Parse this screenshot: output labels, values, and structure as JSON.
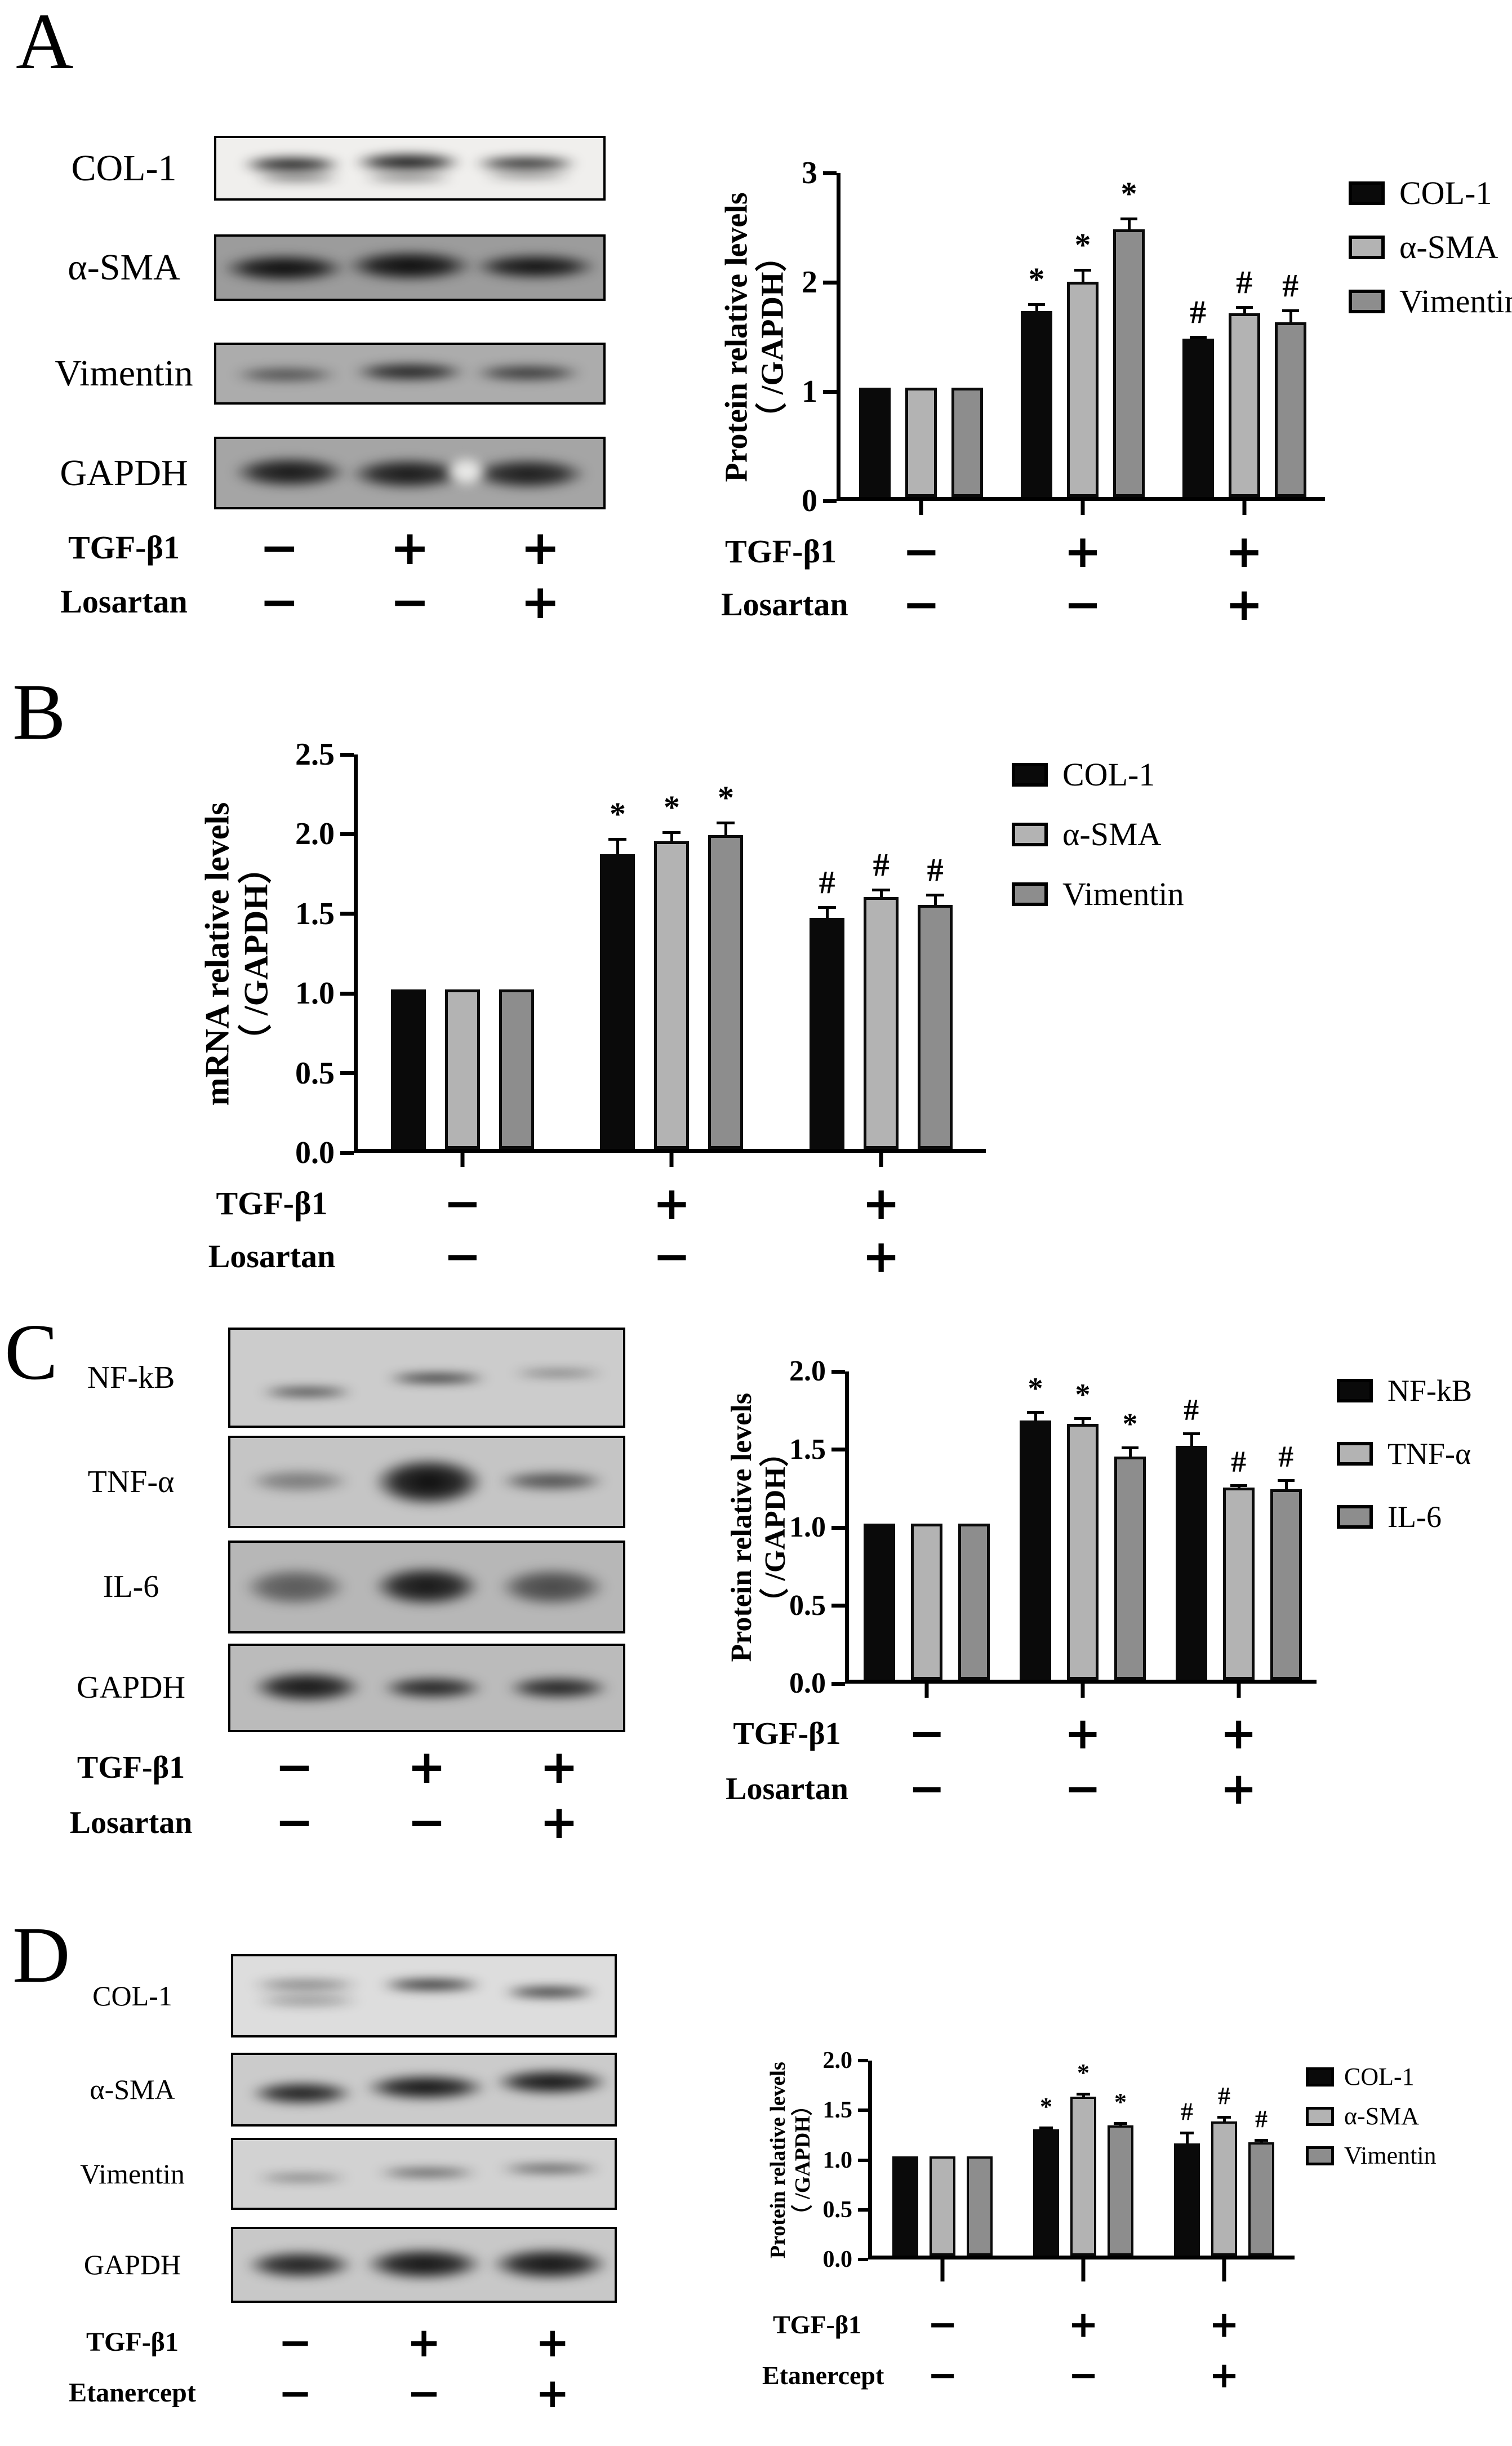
{
  "figure": {
    "background": "#ffffff",
    "bar_colors": {
      "black": "#0a0a0a",
      "light_gray": "#b3b3b3",
      "mid_gray": "#8d8d8d"
    }
  },
  "panels": [
    {
      "label": "A",
      "blot": {
        "rows": [
          {
            "label": "COL-1",
            "h": 115,
            "gap": 60,
            "bg": "#f0efed",
            "bands": [
              {
                "l": 6,
                "t": 30,
                "w": 27,
                "h": 28,
                "a": 0.95
              },
              {
                "l": 9,
                "t": 58,
                "w": 24,
                "h": 16,
                "a": 0.55
              },
              {
                "l": 35,
                "t": 24,
                "w": 29,
                "h": 32,
                "a": 0.97
              },
              {
                "l": 37,
                "t": 58,
                "w": 25,
                "h": 16,
                "a": 0.5
              },
              {
                "l": 66,
                "t": 30,
                "w": 28,
                "h": 24,
                "a": 0.92
              },
              {
                "l": 68,
                "t": 55,
                "w": 25,
                "h": 14,
                "a": 0.45
              }
            ]
          },
          {
            "label": "α-SMA",
            "h": 118,
            "gap": 74,
            "bg": "#9c9c9c",
            "bands": [
              {
                "l": 1,
                "t": 28,
                "w": 33,
                "h": 46,
                "a": 1
              },
              {
                "l": 33,
                "t": 22,
                "w": 34,
                "h": 50,
                "a": 1
              },
              {
                "l": 66,
                "t": 27,
                "w": 33,
                "h": 42,
                "a": 0.97
              }
            ]
          },
          {
            "label": "Vimentin",
            "h": 110,
            "gap": 57,
            "bg": "#acacac",
            "bands": [
              {
                "l": 4,
                "t": 38,
                "w": 28,
                "h": 28,
                "a": 0.6
              },
              {
                "l": 35,
                "t": 30,
                "w": 30,
                "h": 34,
                "a": 0.88
              },
              {
                "l": 66,
                "t": 34,
                "w": 29,
                "h": 30,
                "a": 0.75
              }
            ]
          },
          {
            "label": "GAPDH",
            "h": 129,
            "gap": 0,
            "bg": "#a5a5a5",
            "bands": [
              {
                "l": 4,
                "t": 26,
                "w": 30,
                "h": 46,
                "a": 0.93
              },
              {
                "l": 34,
                "t": 28,
                "w": 31,
                "h": 46,
                "a": 0.92
              },
              {
                "l": 65,
                "t": 28,
                "w": 31,
                "h": 46,
                "a": 0.9
              },
              {
                "l": 59,
                "t": 26,
                "w": 11,
                "h": 44,
                "a": 0.95,
                "light": true
              }
            ]
          }
        ],
        "condition_rows": [
          {
            "label": "TGF-β1",
            "values": [
              "−",
              "+",
              "+"
            ]
          },
          {
            "label": "Losartan",
            "values": [
              "−",
              "−",
              "+"
            ]
          }
        ]
      },
      "chart_data": {
        "type": "bar",
        "title": "",
        "ylabel_line1": "Protein relative levels",
        "ylabel_line2": "（ /GAPDH）",
        "ylim": [
          0,
          3
        ],
        "ytick_labels": [
          "0",
          "1",
          "2",
          "3"
        ],
        "grid": false,
        "legend_position": "right",
        "categories": [
          "TGF-β1 − / Losartan −",
          "TGF-β1 + / Losartan −",
          "TGF-β1 + / Losartan +"
        ],
        "series": [
          {
            "name": "COL-1",
            "color": "#0a0a0a",
            "values": [
              1.0,
              1.7,
              1.45
            ],
            "errors": [
              0,
              0.07,
              0.02
            ],
            "annotations": [
              "",
              "*",
              "#"
            ]
          },
          {
            "name": "α-SMA",
            "color": "#b3b3b3",
            "values": [
              1.0,
              1.97,
              1.68
            ],
            "errors": [
              0,
              0.11,
              0.06
            ],
            "annotations": [
              "",
              "*",
              "#"
            ]
          },
          {
            "name": "Vimentin",
            "color": "#8d8d8d",
            "values": [
              1.0,
              2.45,
              1.6
            ],
            "errors": [
              0,
              0.1,
              0.11
            ],
            "annotations": [
              "",
              "*",
              "#"
            ]
          }
        ],
        "legend": [
          "COL-1",
          "α-SMA",
          "Vimentin"
        ],
        "condition_rows": [
          {
            "label": "TGF-β1",
            "values": [
              "−",
              "+",
              "+"
            ]
          },
          {
            "label": "Losartan",
            "values": [
              "−",
              "−",
              "+"
            ]
          }
        ]
      }
    },
    {
      "label": "B",
      "chart_data": {
        "type": "bar",
        "title": "",
        "ylabel_line1": "mRNA relative levels",
        "ylabel_line2": "（ /GAPDH）",
        "ylim": [
          0,
          2.5
        ],
        "ytick_labels": [
          "0.0",
          "0.5",
          "1.0",
          "1.5",
          "2.0",
          "2.5"
        ],
        "grid": false,
        "legend_position": "right",
        "categories": [
          "TGF-β1 − / Losartan −",
          "TGF-β1 + / Losartan −",
          "TGF-β1 + / Losartan +"
        ],
        "series": [
          {
            "name": "COL-1",
            "color": "#0a0a0a",
            "values": [
              1.0,
              1.85,
              1.45
            ],
            "errors": [
              0,
              0.1,
              0.07
            ],
            "annotations": [
              "",
              "*",
              "#"
            ]
          },
          {
            "name": "α-SMA",
            "color": "#b3b3b3",
            "values": [
              1.0,
              1.93,
              1.58
            ],
            "errors": [
              0,
              0.06,
              0.05
            ],
            "annotations": [
              "",
              "*",
              "#"
            ]
          },
          {
            "name": "Vimentin",
            "color": "#8d8d8d",
            "values": [
              1.0,
              1.97,
              1.53
            ],
            "errors": [
              0,
              0.08,
              0.07
            ],
            "annotations": [
              "",
              "*",
              "#"
            ]
          }
        ],
        "legend": [
          "COL-1",
          "α-SMA",
          "Vimentin"
        ],
        "condition_rows": [
          {
            "label": "TGF-β1",
            "values": [
              "−",
              "+",
              "+"
            ]
          },
          {
            "label": "Losartan",
            "values": [
              "−",
              "−",
              "+"
            ]
          }
        ]
      }
    },
    {
      "label": "C",
      "blot": {
        "rows": [
          {
            "label": "NF-kB",
            "h": 178,
            "gap": 14,
            "bg": "#cccccc",
            "bands": [
              {
                "l": 7,
                "t": 60,
                "w": 25,
                "h": 10,
                "a": 0.85
              },
              {
                "l": 39,
                "t": 45,
                "w": 27,
                "h": 11,
                "a": 0.95
              },
              {
                "l": 71,
                "t": 42,
                "w": 25,
                "h": 7,
                "a": 0.6
              }
            ]
          },
          {
            "label": "TNF-α",
            "h": 164,
            "gap": 22,
            "bg": "#c5c5c5",
            "bands": [
              {
                "l": 4,
                "t": 36,
                "w": 27,
                "h": 26,
                "a": 0.4
              },
              {
                "l": 36,
                "t": 22,
                "w": 29,
                "h": 56,
                "a": 1
              },
              {
                "l": 68,
                "t": 38,
                "w": 28,
                "h": 22,
                "a": 0.65
              }
            ]
          },
          {
            "label": "IL-6",
            "h": 165,
            "gap": 18,
            "bg": "#b7b7b7",
            "bands": [
              {
                "l": 3,
                "t": 28,
                "w": 27,
                "h": 44,
                "a": 0.55
              },
              {
                "l": 36,
                "t": 26,
                "w": 28,
                "h": 46,
                "a": 0.95
              },
              {
                "l": 68,
                "t": 28,
                "w": 28,
                "h": 44,
                "a": 0.65
              }
            ]
          },
          {
            "label": "GAPDH",
            "h": 157,
            "gap": 0,
            "bg": "#bbbbbb",
            "bands": [
              {
                "l": 5,
                "t": 30,
                "w": 29,
                "h": 38,
                "a": 0.95
              },
              {
                "l": 38,
                "t": 36,
                "w": 27,
                "h": 28,
                "a": 0.88
              },
              {
                "l": 70,
                "t": 36,
                "w": 27,
                "h": 28,
                "a": 0.88
              }
            ]
          }
        ],
        "condition_rows": [
          {
            "label": "TGF-β1",
            "values": [
              "−",
              "+",
              "+"
            ]
          },
          {
            "label": "Losartan",
            "values": [
              "−",
              "−",
              "+"
            ]
          }
        ]
      },
      "chart_data": {
        "type": "bar",
        "title": "",
        "ylabel_line1": "Protein relative levels",
        "ylabel_line2": "（ /GAPDH）",
        "ylim": [
          0,
          2
        ],
        "ytick_labels": [
          "0.0",
          "0.5",
          "1.0",
          "1.5",
          "2.0"
        ],
        "grid": false,
        "legend_position": "right",
        "categories": [
          "TGF-β1 − / Losartan −",
          "TGF-β1 + / Losartan −",
          "TGF-β1 + / Losartan +"
        ],
        "series": [
          {
            "name": "NF-kB",
            "color": "#0a0a0a",
            "values": [
              1.0,
              1.66,
              1.5
            ],
            "errors": [
              0,
              0.06,
              0.08
            ],
            "annotations": [
              "",
              "*",
              "#"
            ]
          },
          {
            "name": "TNF-α",
            "color": "#b3b3b3",
            "values": [
              1.0,
              1.64,
              1.23
            ],
            "errors": [
              0,
              0.04,
              0.02
            ],
            "annotations": [
              "",
              "*",
              "#"
            ]
          },
          {
            "name": "IL-6",
            "color": "#8d8d8d",
            "values": [
              1.0,
              1.43,
              1.22
            ],
            "errors": [
              0,
              0.06,
              0.06
            ],
            "annotations": [
              "",
              "*",
              "#"
            ]
          }
        ],
        "legend": [
          "NF-kB",
          "TNF-α",
          "IL-6"
        ],
        "condition_rows": [
          {
            "label": "TGF-β1",
            "values": [
              "−",
              "+",
              "+"
            ]
          },
          {
            "label": "Losartan",
            "values": [
              "−",
              "−",
              "+"
            ]
          }
        ]
      }
    },
    {
      "label": "D",
      "blot": {
        "rows": [
          {
            "label": "COL-1",
            "h": 148,
            "gap": 27,
            "bg": "#dddddd",
            "bands": [
              {
                "l": 4,
                "t": 28,
                "w": 30,
                "h": 16,
                "a": 0.45
              },
              {
                "l": 5,
                "t": 48,
                "w": 29,
                "h": 16,
                "a": 0.35
              },
              {
                "l": 38,
                "t": 28,
                "w": 28,
                "h": 16,
                "a": 0.9
              },
              {
                "l": 70,
                "t": 38,
                "w": 26,
                "h": 15,
                "a": 0.9
              }
            ]
          },
          {
            "label": "α-SMA",
            "h": 131,
            "gap": 20,
            "bg": "#cbcbcb",
            "bands": [
              {
                "l": 4,
                "t": 38,
                "w": 28,
                "h": 34,
                "a": 0.92
              },
              {
                "l": 34,
                "t": 28,
                "w": 33,
                "h": 38,
                "a": 0.97
              },
              {
                "l": 68,
                "t": 20,
                "w": 31,
                "h": 38,
                "a": 0.97
              }
            ]
          },
          {
            "label": "Vimentin",
            "h": 128,
            "gap": 30,
            "bg": "#d2d2d2",
            "bands": [
              {
                "l": 5,
                "t": 50,
                "w": 26,
                "h": 12,
                "a": 0.55
              },
              {
                "l": 37,
                "t": 42,
                "w": 28,
                "h": 13,
                "a": 0.75
              },
              {
                "l": 69,
                "t": 36,
                "w": 28,
                "h": 13,
                "a": 0.75
              }
            ]
          },
          {
            "label": "GAPDH",
            "h": 135,
            "gap": 0,
            "bg": "#c8c8c8",
            "bands": [
              {
                "l": 3,
                "t": 30,
                "w": 29,
                "h": 40,
                "a": 0.9
              },
              {
                "l": 34,
                "t": 26,
                "w": 32,
                "h": 46,
                "a": 0.97
              },
              {
                "l": 67,
                "t": 26,
                "w": 32,
                "h": 46,
                "a": 0.97
              }
            ]
          }
        ],
        "condition_rows": [
          {
            "label": "TGF-β1",
            "values": [
              "−",
              "+",
              "+"
            ]
          },
          {
            "label": "Etanercept",
            "values": [
              "−",
              "−",
              "+"
            ]
          }
        ]
      },
      "chart_data": {
        "type": "bar",
        "title": "",
        "ylabel_line1": "Protein relative levels",
        "ylabel_line2": "（ /GAPDH）",
        "ylim": [
          0,
          2
        ],
        "ytick_labels": [
          "0.0",
          "0.5",
          "1.0",
          "1.5",
          "2.0"
        ],
        "grid": false,
        "legend_position": "right",
        "categories": [
          "TGF-β1 − / Etanercept −",
          "TGF-β1 + / Etanercept −",
          "TGF-β1 + / Etanercept +"
        ],
        "series": [
          {
            "name": "COL-1",
            "color": "#0a0a0a",
            "values": [
              1.0,
              1.27,
              1.13
            ],
            "errors": [
              0,
              0.02,
              0.11
            ],
            "annotations": [
              "",
              "*",
              "#"
            ]
          },
          {
            "name": "α-SMA",
            "color": "#b3b3b3",
            "values": [
              1.0,
              1.6,
              1.35
            ],
            "errors": [
              0,
              0.03,
              0.05
            ],
            "annotations": [
              "",
              "*",
              "#"
            ]
          },
          {
            "name": "Vimentin",
            "color": "#8d8d8d",
            "values": [
              1.0,
              1.31,
              1.14
            ],
            "errors": [
              0,
              0.03,
              0.03
            ],
            "annotations": [
              "",
              "*",
              "#"
            ]
          }
        ],
        "legend": [
          "COL-1",
          "α-SMA",
          "Vimentin"
        ],
        "condition_rows": [
          {
            "label": "TGF-β1",
            "values": [
              "−",
              "+",
              "+"
            ]
          },
          {
            "label": "Etanercept",
            "values": [
              "−",
              "−",
              "+"
            ]
          }
        ]
      }
    }
  ]
}
